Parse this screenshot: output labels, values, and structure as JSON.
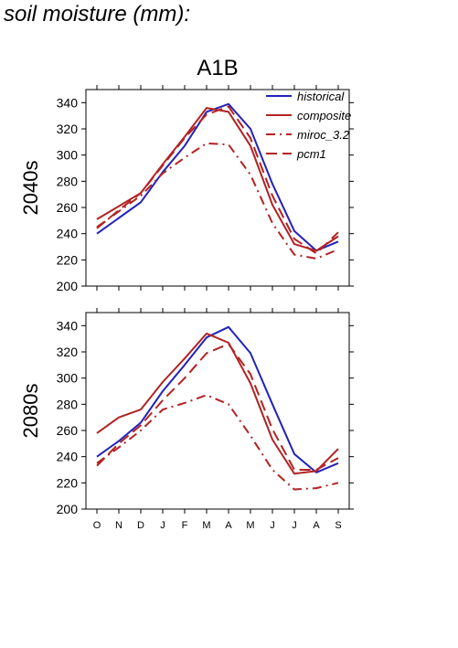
{
  "page_title": "soil moisture (mm):",
  "figure_title": "A1B",
  "colors": {
    "historical": "#2222bb",
    "scenario": "#b22222",
    "axis": "#000000"
  },
  "legend": [
    {
      "name": "historical",
      "style": "solid",
      "color": "#2222bb"
    },
    {
      "name": "composite",
      "style": "solid",
      "color": "#b22222"
    },
    {
      "name": "miroc_3.2",
      "style": "dashdot",
      "color": "#b22222"
    },
    {
      "name": "pcm1",
      "style": "dash",
      "color": "#b22222"
    }
  ],
  "chart_data": [
    {
      "type": "line",
      "ylabel": "2040s",
      "xlabel": "",
      "categories": [
        "O",
        "N",
        "D",
        "J",
        "F",
        "M",
        "A",
        "M",
        "J",
        "J",
        "A",
        "S"
      ],
      "ylim": [
        200,
        350
      ],
      "yticks": [
        200,
        220,
        240,
        260,
        280,
        300,
        320,
        340
      ],
      "legend_position": "top-right",
      "series": [
        {
          "name": "historical",
          "values": [
            240,
            252,
            264,
            287,
            307,
            333,
            339,
            320,
            278,
            242,
            227,
            234
          ]
        },
        {
          "name": "composite",
          "values": [
            251,
            261,
            271,
            293,
            314,
            336,
            333,
            307,
            262,
            232,
            227,
            238
          ]
        },
        {
          "name": "miroc_3.2",
          "values": [
            245,
            257,
            269,
            286,
            298,
            309,
            308,
            285,
            248,
            224,
            221,
            228
          ]
        },
        {
          "name": "pcm1",
          "values": [
            244,
            258,
            271,
            292,
            313,
            331,
            337,
            313,
            269,
            236,
            225,
            241
          ]
        }
      ]
    },
    {
      "type": "line",
      "ylabel": "2080s",
      "xlabel": "",
      "categories": [
        "O",
        "N",
        "D",
        "J",
        "F",
        "M",
        "A",
        "M",
        "J",
        "J",
        "A",
        "S"
      ],
      "ylim": [
        200,
        350
      ],
      "yticks": [
        200,
        220,
        240,
        260,
        280,
        300,
        320,
        340
      ],
      "series": [
        {
          "name": "historical",
          "values": [
            240,
            252,
            266,
            290,
            310,
            331,
            339,
            319,
            280,
            242,
            228,
            235
          ]
        },
        {
          "name": "composite",
          "values": [
            258,
            270,
            276,
            297,
            315,
            334,
            327,
            296,
            253,
            227,
            229,
            246
          ]
        },
        {
          "name": "miroc_3.2",
          "values": [
            235,
            247,
            260,
            276,
            281,
            287,
            280,
            256,
            230,
            215,
            216,
            220
          ]
        },
        {
          "name": "pcm1",
          "values": [
            233,
            250,
            264,
            283,
            300,
            319,
            326,
            303,
            261,
            230,
            230,
            239
          ]
        }
      ]
    }
  ]
}
